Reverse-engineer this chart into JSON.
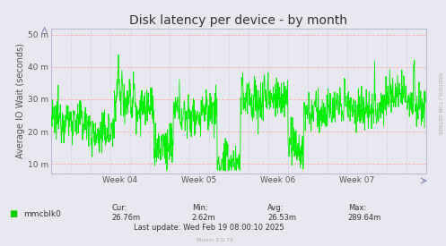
{
  "title": "Disk latency per device - by month",
  "ylabel": "Average IO Wait (seconds)",
  "bg_color": "#e8e8f0",
  "plot_bg_color": "#e8e8f0",
  "grid_h_color": "#ffaaaa",
  "grid_v_color": "#aaaacc",
  "line_color": "#00ee00",
  "ytick_vals": [
    10,
    20,
    30,
    40,
    50
  ],
  "ytick_labels": [
    "10 m",
    "20 m",
    "30 m",
    "40 m",
    "50 m"
  ],
  "ylim_min": 7,
  "ylim_max": 52,
  "xtick_labels": [
    "Week 04",
    "Week 05",
    "Week 06",
    "Week 07"
  ],
  "xtick_positions": [
    0.875,
    1.875,
    2.875,
    3.875
  ],
  "legend_label": "mmcblk0",
  "legend_color": "#00cc00",
  "cur_val": "26.76m",
  "min_val": "2.62m",
  "avg_val": "26.53m",
  "max_val": "289.64m",
  "last_update": "Last update: Wed Feb 19 08:00:10 2025",
  "munin_text": "Munin 2.0.75",
  "rrdtool_text": "RRDTOOL / TOBI OETIKER",
  "title_fontsize": 10,
  "axis_label_fontsize": 7,
  "tick_fontsize": 6.5,
  "legend_fontsize": 6.5,
  "annotation_fontsize": 6
}
